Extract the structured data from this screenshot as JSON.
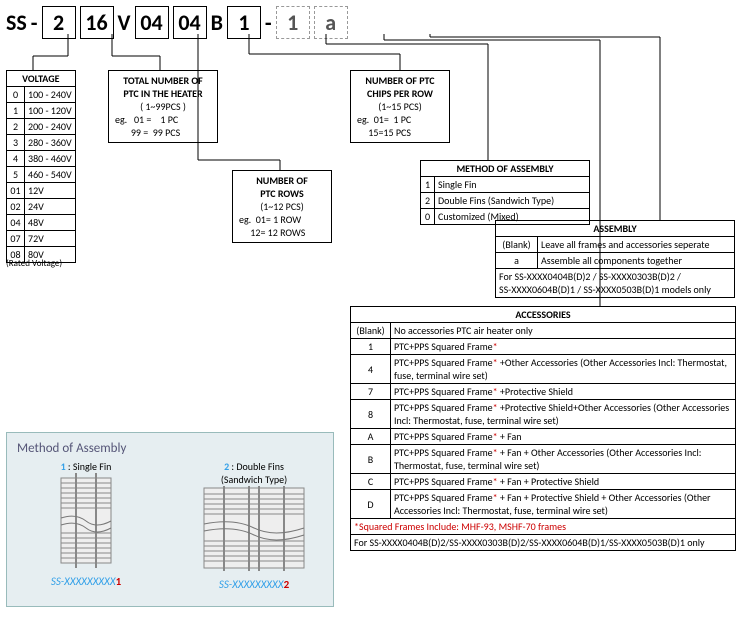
{
  "code": {
    "prefix": "SS",
    "dash1": "-",
    "b1": "2",
    "b2": "16",
    "v": "V",
    "b3": "04",
    "b4": "04",
    "bL": "B",
    "b5": "1",
    "dash2": "-",
    "b6": "1",
    "b7": "a"
  },
  "voltage": {
    "title": "VOLTAGE",
    "rows": [
      [
        "0",
        "100 - 240V"
      ],
      [
        "1",
        "100 - 120V"
      ],
      [
        "2",
        "200 - 240V"
      ],
      [
        "3",
        "280 - 360V"
      ],
      [
        "4",
        "380 - 460V"
      ],
      [
        "5",
        "460 - 540V"
      ],
      [
        "01",
        "12V"
      ],
      [
        "02",
        "24V"
      ],
      [
        "04",
        "48V"
      ],
      [
        "07",
        "72V"
      ],
      [
        "08",
        "80V"
      ]
    ],
    "foot": "(Rated Voltage)"
  },
  "totalptc": {
    "l1": "TOTAL NUMBER OF",
    "l2": "PTC IN THE HEATER",
    "l3": "( 1~99PCS )",
    "l4": "eg.   01 =    1 PC",
    "l5": "       99 =  99 PCS"
  },
  "rows": {
    "l1": "NUMBER OF",
    "l2": "PTC ROWS",
    "l3": "(1~12 PCS)",
    "l4": "eg.  01= 1 ROW",
    "l5": "     12= 12 ROWS"
  },
  "chips": {
    "l1": "NUMBER OF PTC",
    "l2": "CHIPS PER ROW",
    "l3": "(1~15 PCS)",
    "l4": "eg.  01=  1 PC",
    "l5": "     15=15 PCS"
  },
  "method": {
    "title": "METHOD OF ASSEMBLY",
    "rows": [
      [
        "1",
        "Single Fin"
      ],
      [
        "2",
        "Double Fins (Sandwich Type)"
      ],
      [
        "0",
        "Customized (Mixed)"
      ]
    ]
  },
  "assembly": {
    "title": "ASSEMBLY",
    "rows": [
      [
        "(Blank)",
        "Leave all frames and accessories seperate"
      ],
      [
        "a",
        "Assemble all components together"
      ]
    ],
    "foot": "For SS-XXXX0404B(D)2 / SS-XXXX0303B(D)2 /\nSS-XXXX0604B(D)1 / SS-XXXX0503B(D)1 models only"
  },
  "acc": {
    "title": "ACCESSORIES",
    "rows": [
      [
        "(Blank)",
        "No accessories PTC air heater only"
      ],
      [
        "1",
        "PTC+PPS Squared Frame*"
      ],
      [
        "4",
        "PTC+PPS Squared Frame* +Other Accessories\n   (Other Accessories Incl: Thermostat, fuse, terminal wire set)"
      ],
      [
        "7",
        "PTC+PPS Squared Frame* +Protective Shield"
      ],
      [
        "8",
        "PTC+PPS Squared Frame* +Protective Shield+Other Accessories\n(Other Accessories Incl: Thermostat, fuse, terminal wire set)"
      ],
      [
        "A",
        "PTC+PPS Squared Frame* + Fan"
      ],
      [
        "B",
        "PTC+PPS Squared Frame* + Fan + Other Accessories\n   (Other Accessories Incl: Thermostat, fuse, terminal wire set)"
      ],
      [
        "C",
        "PTC+PPS Squared Frame* + Fan + Protective Shield"
      ],
      [
        "D",
        "PTC+PPS Squared Frame* + Fan + Protective Shield + Other Accessories (Other Accessories Incl: Thermostat, fuse, terminal wire set)"
      ]
    ],
    "foot1": "*Squared Frames Include: MHF-93, MSHF-70 frames",
    "foot2": "For SS-XXXX0404B(D)2/SS-XXXX0303B(D)2/SS-XXXX0604B(D)1/SS-XXXX0503B(D)1 only"
  },
  "diag": {
    "title": "Method of Assembly",
    "c1": "Single Fin",
    "c2": "Double Fins",
    "c2b": "(Sandwich Type)",
    "cap1": "SS-XXXXXXXXX",
    "cap1s": "1",
    "cap2": "SS-XXXXXXXXX",
    "cap2s": "2"
  },
  "colors": {
    "line": "#000"
  }
}
